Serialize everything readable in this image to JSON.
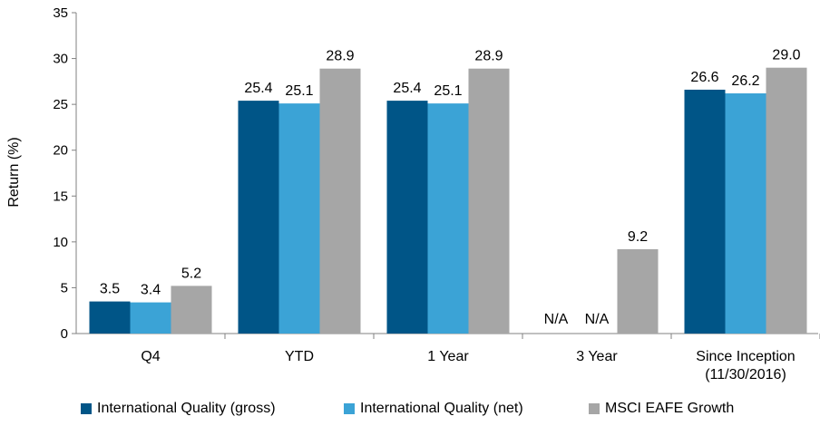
{
  "chart_data": {
    "type": "bar",
    "title": "",
    "xlabel": "",
    "ylabel": "Return (%)",
    "ylim": [
      0,
      35
    ],
    "yticks": [
      0,
      5,
      10,
      15,
      20,
      25,
      30,
      35
    ],
    "grid": false,
    "legend_position": "bottom",
    "categories": [
      "Q4",
      "YTD",
      "1 Year",
      "3 Year",
      "Since Inception\n(11/30/2016)"
    ],
    "series": [
      {
        "name": "International Quality (gross)",
        "color": "#005587",
        "values": [
          3.5,
          25.4,
          25.4,
          null,
          26.6
        ],
        "labels": [
          "3.5",
          "25.4",
          "25.4",
          "N/A",
          "26.6"
        ]
      },
      {
        "name": "International Quality (net)",
        "color": "#3ba3d6",
        "values": [
          3.4,
          25.1,
          25.1,
          null,
          26.2
        ],
        "labels": [
          "3.4",
          "25.1",
          "25.1",
          "N/A",
          "26.2"
        ]
      },
      {
        "name": "MSCI EAFE Growth",
        "color": "#a6a6a6",
        "values": [
          5.2,
          28.9,
          28.9,
          9.2,
          29.0
        ],
        "labels": [
          "5.2",
          "28.9",
          "28.9",
          "9.2",
          "29.0"
        ]
      }
    ]
  }
}
